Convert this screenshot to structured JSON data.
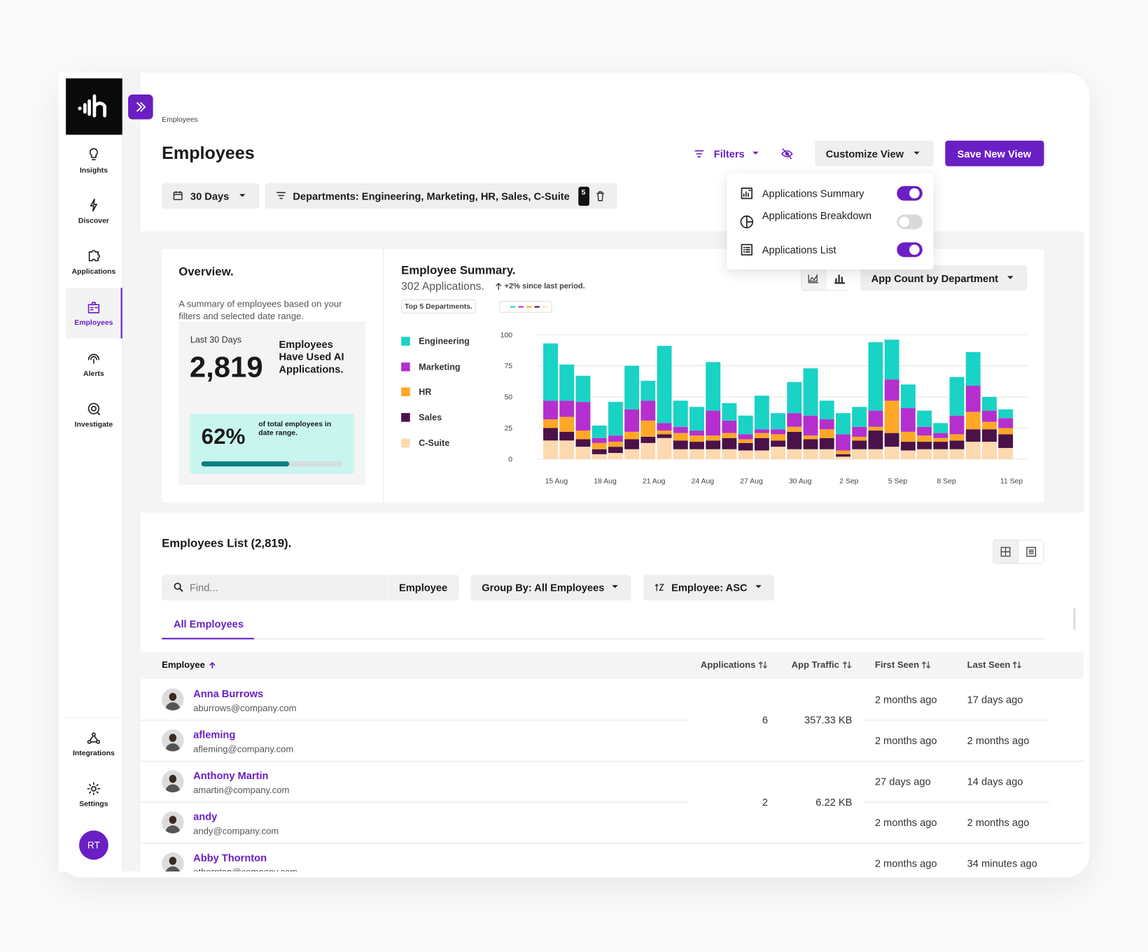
{
  "sidebar": {
    "nav": [
      {
        "label": "Insights",
        "active": false
      },
      {
        "label": "Discover",
        "active": false
      },
      {
        "label": "Applications",
        "active": false
      },
      {
        "label": "Employees",
        "active": true
      },
      {
        "label": "Alerts",
        "active": false
      },
      {
        "label": "Investigate",
        "active": false
      }
    ],
    "bottom": [
      "Integrations",
      "Settings"
    ],
    "avatar": "RT"
  },
  "breadcrumb": "Employees",
  "page_title": "Employees",
  "toolbar": {
    "filters": "Filters",
    "customize": "Customize View",
    "save": "Save New View"
  },
  "customize_menu": [
    {
      "label": "Applications Summary",
      "on": true
    },
    {
      "label": "Applications Breakdown",
      "on": false
    },
    {
      "label": "Applications List",
      "on": true
    }
  ],
  "filter_bar": {
    "date": "30 Days",
    "departments": "Departments: Engineering, Marketing, HR, Sales, C-Suite",
    "count": 5
  },
  "overview": {
    "title": "Overview.",
    "description": "A summary of employees based on your filters and selected date range.",
    "period": "Last 30 Days",
    "count": "2,819",
    "count_label": "Employees Have Used AI Applications.",
    "percent": "62%",
    "percent_label": "of total employees in date range.",
    "progress": 62
  },
  "chart_data": {
    "type": "bar",
    "stacked": true,
    "title": "Employee Summary.",
    "subtitle": "302 Applications.",
    "change": "+2% since last period.",
    "legend_title": "Top 5 Departments.",
    "dropdown": "App Count by Department",
    "categories": [
      "15 Aug",
      null,
      null,
      "18 Aug",
      null,
      null,
      "21 Aug",
      null,
      null,
      "24 Aug",
      null,
      null,
      "27 Aug",
      null,
      null,
      "30 Aug",
      null,
      null,
      "2 Sep",
      null,
      null,
      "5 Sep",
      null,
      null,
      "8 Sep",
      null,
      null,
      null,
      "11 Sep"
    ],
    "series": [
      {
        "name": "Engineering",
        "color": "#19d3c5",
        "values": [
          46,
          29,
          21,
          10,
          27,
          35,
          16,
          62,
          21,
          19,
          39,
          14,
          15,
          27,
          13,
          25,
          38,
          15,
          17,
          16,
          55,
          32,
          19,
          13,
          8,
          31,
          27,
          11,
          7
        ]
      },
      {
        "name": "Marketing",
        "color": "#b52fcf",
        "values": [
          15,
          13,
          23,
          4,
          5,
          18,
          16,
          6,
          5,
          4,
          20,
          10,
          4,
          3,
          4,
          11,
          16,
          8,
          13,
          8,
          13,
          17,
          19,
          7,
          4,
          15,
          21,
          9,
          8
        ]
      },
      {
        "name": "HR",
        "color": "#ffa726",
        "values": [
          7,
          12,
          7,
          5,
          4,
          6,
          13,
          3,
          6,
          5,
          4,
          4,
          3,
          4,
          5,
          4,
          3,
          7,
          3,
          3,
          3,
          26,
          8,
          5,
          3,
          5,
          14,
          6,
          5
        ]
      },
      {
        "name": "Sales",
        "color": "#4a1248",
        "values": [
          10,
          7,
          6,
          4,
          5,
          8,
          5,
          3,
          7,
          6,
          7,
          9,
          6,
          10,
          5,
          14,
          8,
          9,
          2,
          7,
          15,
          11,
          7,
          6,
          6,
          7,
          10,
          10,
          11
        ]
      },
      {
        "name": "C-Suite",
        "color": "#fdd9b0",
        "values": [
          15,
          15,
          10,
          4,
          5,
          8,
          13,
          17,
          8,
          8,
          8,
          8,
          7,
          7,
          10,
          8,
          8,
          8,
          2,
          8,
          8,
          10,
          7,
          8,
          8,
          8,
          14,
          14,
          9
        ]
      }
    ],
    "ylim": [
      0,
      100
    ],
    "yticks": [
      0,
      25,
      50,
      75,
      100
    ],
    "grid": true
  },
  "list": {
    "title": "Employees List (2,819).",
    "search_placeholder": "Find...",
    "search_field": "Employee",
    "group_by": "Group By: All Employees",
    "sort": "Employee: ASC",
    "tab": "All Employees",
    "columns": [
      "Employee",
      "Applications",
      "App Traffic",
      "First Seen",
      "Last Seen"
    ],
    "rows": [
      {
        "name": "Anna Burrows",
        "email": "aburrows@company.com",
        "first_seen": "2 months ago",
        "last_seen": "17 days ago"
      },
      {
        "name": "afleming",
        "email": "afleming@company.com",
        "first_seen": "2 months ago",
        "last_seen": "2 months ago"
      },
      {
        "name": "Anthony Martin",
        "email": "amartin@company.com",
        "first_seen": "27 days ago",
        "last_seen": "14 days ago"
      },
      {
        "name": "andy",
        "email": "andy@company.com",
        "first_seen": "2 months ago",
        "last_seen": "2 months ago"
      },
      {
        "name": "Abby Thornton",
        "email": "athornton@company.com",
        "first_seen": "2 months ago",
        "last_seen": "34 minutes ago"
      }
    ],
    "groups": [
      {
        "applications": "6",
        "traffic": "357.33 KB"
      },
      {
        "applications": "2",
        "traffic": "6.22 KB"
      }
    ]
  }
}
